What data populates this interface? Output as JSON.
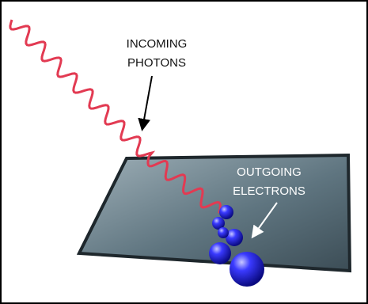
{
  "labels": {
    "incoming": [
      "INCOMING",
      "PHOTONS"
    ],
    "outgoing": [
      "OUTGOING",
      "ELECTRONS"
    ]
  }
}
